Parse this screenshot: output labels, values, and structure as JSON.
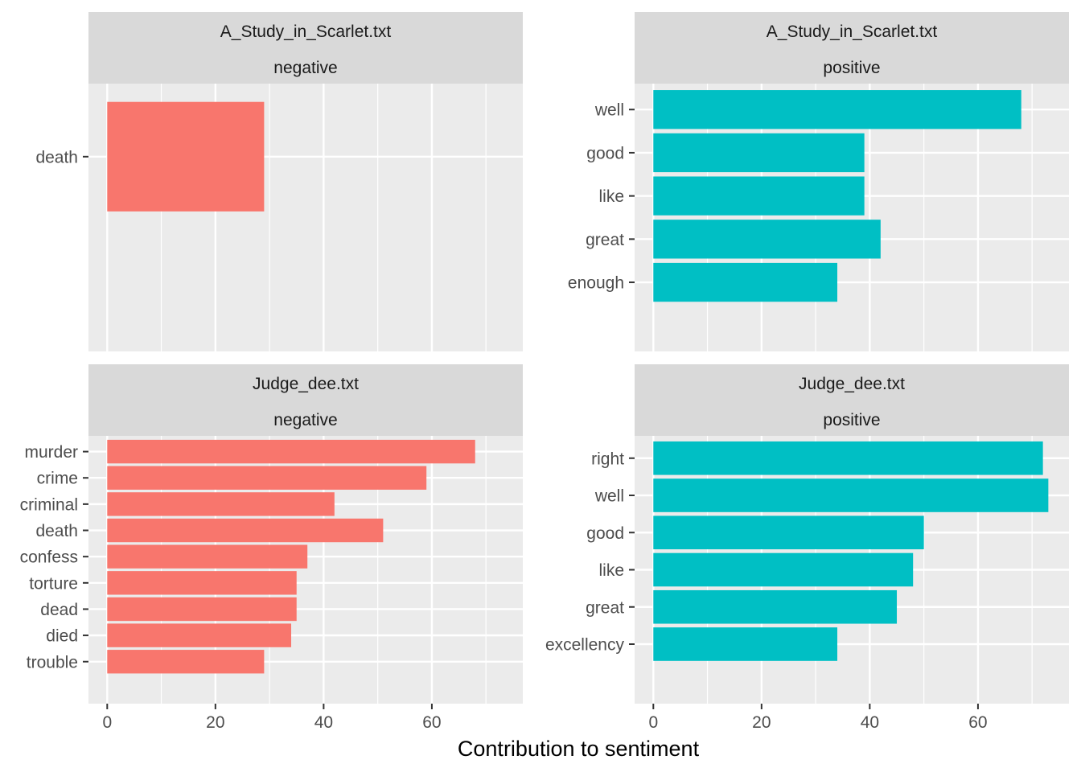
{
  "chart_data": {
    "type": "bar",
    "orientation": "horizontal",
    "layout": "facet-grid 2x2",
    "xlabel": "Contribution to sentiment",
    "ylabel": "",
    "xlim": [
      0,
      75
    ],
    "x_ticks": [
      0,
      20,
      40,
      60
    ],
    "x_minor_ticks": [
      10,
      30,
      50,
      70
    ],
    "grid": true,
    "legend": "none",
    "colors": {
      "negative": "#F8766D",
      "positive": "#00BFC4"
    },
    "panels": [
      {
        "file": "A_Study_in_Scarlet.txt",
        "sentiment": "negative",
        "categories": [
          "death"
        ],
        "values": [
          29
        ]
      },
      {
        "file": "A_Study_in_Scarlet.txt",
        "sentiment": "positive",
        "categories": [
          "well",
          "good",
          "like",
          "great",
          "enough"
        ],
        "values": [
          68,
          39,
          39,
          42,
          34
        ]
      },
      {
        "file": "Judge_dee.txt",
        "sentiment": "negative",
        "categories": [
          "murder",
          "crime",
          "criminal",
          "death",
          "confess",
          "torture",
          "dead",
          "died",
          "trouble"
        ],
        "values": [
          68,
          59,
          42,
          51,
          37,
          35,
          35,
          34,
          29
        ]
      },
      {
        "file": "Judge_dee.txt",
        "sentiment": "positive",
        "categories": [
          "right",
          "well",
          "good",
          "like",
          "great",
          "excellency"
        ],
        "values": [
          72,
          73,
          50,
          48,
          45,
          34
        ]
      }
    ]
  }
}
